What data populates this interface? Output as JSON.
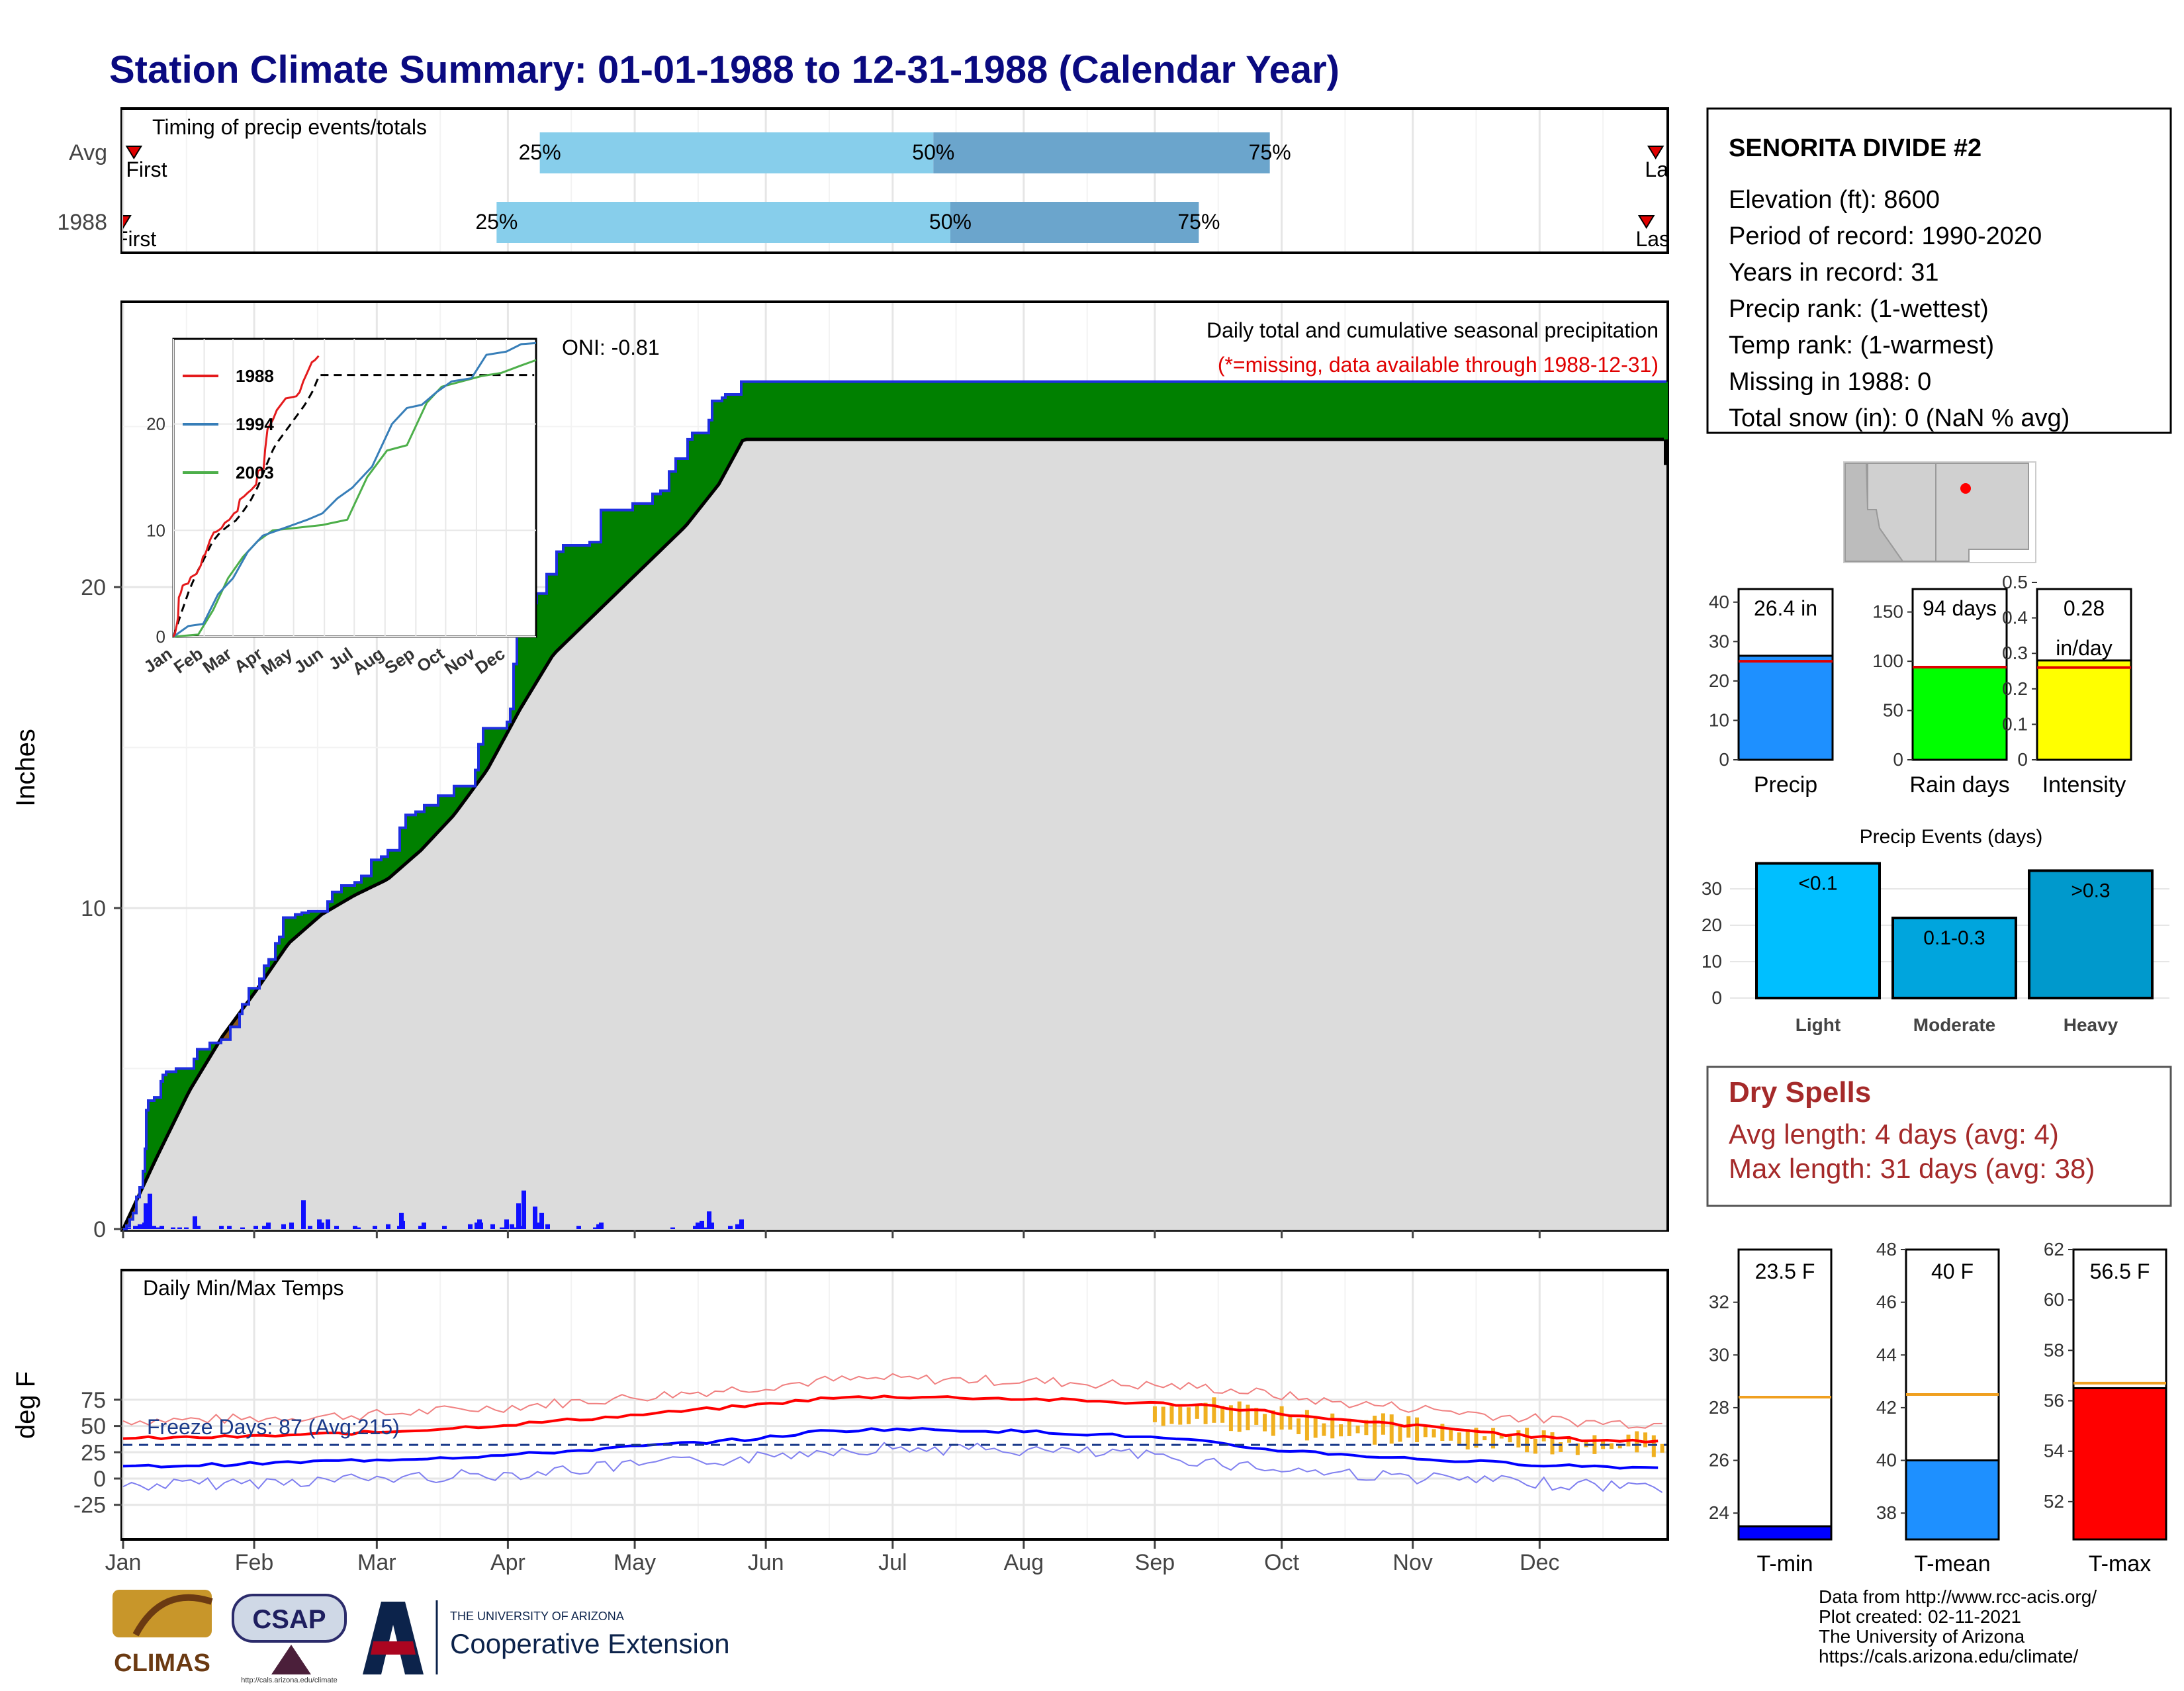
{
  "title": "Station Climate Summary: 01-01-1988 to 12-31-1988 (Calendar Year)",
  "months": [
    "Jan",
    "Feb",
    "Mar",
    "Apr",
    "May",
    "Jun",
    "Jul",
    "Aug",
    "Sep",
    "Oct",
    "Nov",
    "Dec"
  ],
  "timing": {
    "title": "Timing of precip events/totals",
    "rows": [
      {
        "label": "Avg",
        "p25": 0.27,
        "p50": 0.525,
        "p75": 0.743,
        "first": 0.007,
        "last": 0.993,
        "first_label": "First",
        "last_label": "Last"
      },
      {
        "label": "1988",
        "p25": 0.242,
        "p50": 0.536,
        "p75": 0.697,
        "first": 0.0,
        "last": 0.987,
        "first_label": "First",
        "last_label": "Last"
      }
    ],
    "pct_labels": [
      "25%",
      "50%",
      "75%"
    ]
  },
  "precip": {
    "ylabel": "Inches",
    "yticks": [
      0,
      10,
      20
    ],
    "header": "Daily total and cumulative seasonal precipitation",
    "missing_note": "(*=missing, data available through 1988-12-31)",
    "oni_label": "ONI: -0.81",
    "cum_1988": [
      [
        0,
        0
      ],
      [
        5,
        0.1
      ],
      [
        10,
        0.3
      ],
      [
        15,
        0.5
      ],
      [
        20,
        1.0
      ],
      [
        25,
        1.3
      ],
      [
        30,
        1.8
      ],
      [
        33,
        2.5
      ],
      [
        35,
        3.7
      ],
      [
        38,
        4.0
      ],
      [
        47,
        4.1
      ],
      [
        57,
        4.6
      ],
      [
        60,
        4.8
      ],
      [
        65,
        4.9
      ],
      [
        70,
        4.9
      ],
      [
        80,
        5.0
      ],
      [
        95,
        5.0
      ],
      [
        107,
        5.3
      ],
      [
        112,
        5.6
      ],
      [
        131,
        5.8
      ],
      [
        148,
        5.9
      ],
      [
        162,
        6.3
      ],
      [
        176,
        6.7
      ],
      [
        180,
        7.0
      ],
      [
        190,
        7.5
      ],
      [
        196,
        7.5
      ],
      [
        206,
        7.8
      ],
      [
        213,
        8.2
      ],
      [
        220,
        8.4
      ],
      [
        230,
        8.9
      ],
      [
        236,
        9.1
      ],
      [
        242,
        9.7
      ],
      [
        260,
        9.8
      ],
      [
        270,
        9.85
      ],
      [
        280,
        9.9
      ],
      [
        300,
        9.9
      ],
      [
        309,
        10.2
      ],
      [
        316,
        10.5
      ],
      [
        330,
        10.7
      ],
      [
        350,
        10.8
      ],
      [
        360,
        11.0
      ],
      [
        375,
        11.5
      ],
      [
        390,
        11.6
      ],
      [
        400,
        11.8
      ],
      [
        412,
        11.8
      ],
      [
        418,
        12.5
      ],
      [
        427,
        12.9
      ],
      [
        442,
        13.0
      ],
      [
        455,
        13.2
      ],
      [
        463,
        13.2
      ],
      [
        476,
        13.5
      ],
      [
        490,
        13.5
      ],
      [
        500,
        13.8
      ],
      [
        525,
        13.8
      ],
      [
        532,
        14.3
      ],
      [
        537,
        15.1
      ],
      [
        544,
        15.6
      ],
      [
        560,
        15.6
      ],
      [
        580,
        15.8
      ],
      [
        585,
        16.2
      ],
      [
        590,
        17.6
      ],
      [
        595,
        18.8
      ],
      [
        605,
        19.5
      ],
      [
        625,
        19.8
      ],
      [
        640,
        20.4
      ],
      [
        655,
        21.1
      ],
      [
        665,
        21.3
      ],
      [
        705,
        21.4
      ],
      [
        722,
        22.4
      ],
      [
        770,
        22.6
      ],
      [
        790,
        22.6
      ],
      [
        800,
        22.9
      ],
      [
        812,
        23.0
      ],
      [
        825,
        23.6
      ],
      [
        835,
        24.0
      ],
      [
        853,
        24.6
      ],
      [
        860,
        24.8
      ],
      [
        885,
        25.2
      ],
      [
        890,
        25.8
      ],
      [
        905,
        25.9
      ],
      [
        910,
        26.0
      ],
      [
        920,
        26.0
      ],
      [
        934,
        26.4
      ],
      [
        937,
        26.4
      ]
    ],
    "cum_avg": [
      [
        0,
        0
      ],
      [
        50,
        2.2
      ],
      [
        100,
        4.3
      ],
      [
        150,
        6.0
      ],
      [
        200,
        7.4
      ],
      [
        250,
        8.9
      ],
      [
        300,
        9.8
      ],
      [
        350,
        10.4
      ],
      [
        400,
        10.9
      ],
      [
        450,
        11.8
      ],
      [
        500,
        12.9
      ],
      [
        550,
        14.3
      ],
      [
        600,
        16.2
      ],
      [
        650,
        17.9
      ],
      [
        700,
        18.9
      ],
      [
        750,
        19.9
      ],
      [
        800,
        20.9
      ],
      [
        850,
        21.9
      ],
      [
        900,
        23.2
      ],
      [
        937,
        24.6
      ]
    ],
    "daily": [
      [
        8,
        0.05
      ],
      [
        18,
        0.1
      ],
      [
        25,
        0.15
      ],
      [
        32,
        0.2
      ],
      [
        34,
        0.8
      ],
      [
        37,
        0.2
      ],
      [
        40,
        1.1
      ],
      [
        46,
        0.1
      ],
      [
        52,
        0.05
      ],
      [
        58,
        0.1
      ],
      [
        75,
        0.05
      ],
      [
        85,
        0.05
      ],
      [
        95,
        0.05
      ],
      [
        108,
        0.4
      ],
      [
        113,
        0.1
      ],
      [
        148,
        0.1
      ],
      [
        160,
        0.1
      ],
      [
        180,
        0.05
      ],
      [
        200,
        0.1
      ],
      [
        213,
        0.1
      ],
      [
        219,
        0.2
      ],
      [
        242,
        0.15
      ],
      [
        254,
        0.2
      ],
      [
        272,
        0.9
      ],
      [
        282,
        0.1
      ],
      [
        296,
        0.3
      ],
      [
        300,
        0.2
      ],
      [
        309,
        0.3
      ],
      [
        322,
        0.1
      ],
      [
        350,
        0.1
      ],
      [
        355,
        0.05
      ],
      [
        380,
        0.1
      ],
      [
        400,
        0.15
      ],
      [
        417,
        0.1
      ],
      [
        420,
        0.5
      ],
      [
        422,
        0.25
      ],
      [
        449,
        0.1
      ],
      [
        454,
        0.2
      ],
      [
        485,
        0.1
      ],
      [
        524,
        0.15
      ],
      [
        534,
        0.2
      ],
      [
        538,
        0.3
      ],
      [
        540,
        0.2
      ],
      [
        558,
        0.15
      ],
      [
        572,
        0.05
      ],
      [
        579,
        0.3
      ],
      [
        587,
        0.15
      ],
      [
        592,
        0.05
      ],
      [
        597,
        0.8
      ],
      [
        600,
        0.1
      ],
      [
        605,
        1.2
      ],
      [
        622,
        0.7
      ],
      [
        627,
        0.2
      ],
      [
        632,
        0.5
      ],
      [
        641,
        0.15
      ],
      [
        688,
        0.1
      ],
      [
        713,
        0.05
      ],
      [
        718,
        0.15
      ],
      [
        722,
        0.2
      ],
      [
        830,
        0.05
      ],
      [
        864,
        0.1
      ],
      [
        868,
        0.2
      ],
      [
        874,
        0.25
      ],
      [
        879,
        0.05
      ],
      [
        885,
        0.55
      ],
      [
        889,
        0.2
      ],
      [
        917,
        0.1
      ],
      [
        928,
        0.15
      ],
      [
        934,
        0.3
      ]
    ],
    "inset": {
      "years": [
        {
          "name": "1988",
          "color": "#e41a1c"
        },
        {
          "name": "1994",
          "color": "#377eb8"
        },
        {
          "name": "2003",
          "color": "#4daf4a"
        }
      ],
      "yticks": [
        0,
        10,
        20
      ],
      "ymax": 28,
      "s1994": [
        [
          0,
          0
        ],
        [
          15,
          1.0
        ],
        [
          30,
          1.2
        ],
        [
          45,
          4.0
        ],
        [
          60,
          5.5
        ],
        [
          75,
          8.0
        ],
        [
          90,
          9.5
        ],
        [
          105,
          10.0
        ],
        [
          120,
          10.5
        ],
        [
          135,
          11.0
        ],
        [
          150,
          11.6
        ],
        [
          165,
          13.0
        ],
        [
          180,
          14.0
        ],
        [
          200,
          16.0
        ],
        [
          220,
          20.0
        ],
        [
          235,
          21.5
        ],
        [
          250,
          21.8
        ],
        [
          265,
          23.0
        ],
        [
          280,
          24.0
        ],
        [
          300,
          24.3
        ],
        [
          315,
          26.5
        ],
        [
          335,
          26.8
        ],
        [
          350,
          27.5
        ],
        [
          365,
          27.6
        ]
      ],
      "s2003": [
        [
          0,
          0
        ],
        [
          25,
          0.2
        ],
        [
          40,
          2.5
        ],
        [
          55,
          5.5
        ],
        [
          70,
          7.5
        ],
        [
          85,
          9.0
        ],
        [
          100,
          10.0
        ],
        [
          120,
          10.2
        ],
        [
          150,
          10.5
        ],
        [
          175,
          11.0
        ],
        [
          195,
          15.0
        ],
        [
          215,
          17.5
        ],
        [
          235,
          18.0
        ],
        [
          255,
          22.0
        ],
        [
          270,
          23.5
        ],
        [
          290,
          24.0
        ],
        [
          310,
          24.5
        ],
        [
          330,
          24.8
        ],
        [
          350,
          25.5
        ],
        [
          365,
          26.0
        ]
      ]
    }
  },
  "temps": {
    "ylabel": "deg F",
    "title": "Daily Min/Max Temps",
    "freeze_label": "Freeze Days: 87 (Avg:215)",
    "freeze_line": 32,
    "yticks": [
      -25,
      0,
      25,
      50,
      75
    ],
    "avg_max": [
      [
        0,
        38
      ],
      [
        30,
        40
      ],
      [
        60,
        44
      ],
      [
        90,
        51
      ],
      [
        120,
        60
      ],
      [
        150,
        70
      ],
      [
        165,
        76
      ],
      [
        180,
        78
      ],
      [
        200,
        77
      ],
      [
        220,
        75
      ],
      [
        240,
        72
      ],
      [
        255,
        70
      ],
      [
        270,
        64
      ],
      [
        285,
        56
      ],
      [
        300,
        52
      ],
      [
        315,
        47
      ],
      [
        330,
        41
      ],
      [
        345,
        37
      ],
      [
        365,
        35
      ]
    ],
    "avg_min": [
      [
        0,
        11
      ],
      [
        30,
        14
      ],
      [
        60,
        18
      ],
      [
        90,
        22
      ],
      [
        120,
        30
      ],
      [
        150,
        38
      ],
      [
        165,
        45
      ],
      [
        180,
        47
      ],
      [
        200,
        46
      ],
      [
        220,
        44
      ],
      [
        240,
        40
      ],
      [
        255,
        35
      ],
      [
        270,
        28
      ],
      [
        285,
        24
      ],
      [
        300,
        20
      ],
      [
        315,
        17
      ],
      [
        330,
        14
      ],
      [
        345,
        12
      ],
      [
        365,
        10
      ]
    ]
  },
  "station": {
    "name": "SENORITA DIVIDE #2",
    "lines": [
      "Elevation (ft): 8600",
      "Period of record: 1990-2020",
      "Years in record: 31",
      "Precip rank:  (1-wettest)",
      "Temp rank:  (1-warmest)",
      "Missing in 1988: 0",
      "Total snow (in): 0 (NaN % avg)"
    ]
  },
  "minibars": [
    {
      "label": "Precip",
      "value": 26.4,
      "value_label": "26.4 in",
      "avg": 25.0,
      "ymax": 45,
      "yticks": [
        0,
        10,
        20,
        30,
        40
      ],
      "color": "#1e90ff"
    },
    {
      "label": "Rain days",
      "value": 94,
      "value_label": "94 days",
      "avg": 94,
      "ymax": 180,
      "yticks": [
        0,
        50,
        100,
        150
      ],
      "color": "#00ff00"
    },
    {
      "label": "Intensity",
      "value": 0.28,
      "value_label": "0.28",
      "value_label2": "in/day",
      "avg": 0.26,
      "ymax": 0.5,
      "yticks": [
        0.0,
        0.1,
        0.2,
        0.3,
        0.4,
        0.5
      ],
      "color": "#ffff00"
    }
  ],
  "events": {
    "title": "Precip Events (days)",
    "yticks": [
      0,
      10,
      20,
      30
    ],
    "bars": [
      {
        "cat": "Light",
        "label": "<0.1",
        "value": 37,
        "color": "#00bfff"
      },
      {
        "cat": "Moderate",
        "label": "0.1-0.3",
        "value": 22,
        "color": "#00a5dd"
      },
      {
        "cat": "Heavy",
        "label": ">0.3",
        "value": 35,
        "color": "#0099cc"
      }
    ]
  },
  "dry_spells": {
    "title": "Dry Spells",
    "line1": "Avg length: 4 days (avg: 4)",
    "line2": "Max length: 31 days (avg: 38)"
  },
  "tbars": [
    {
      "label": "T-min",
      "value": 23.5,
      "value_label": "23.5 F",
      "avg": 28.4,
      "ymin": 23,
      "ymax": 34,
      "yticks": [
        24,
        26,
        28,
        30,
        32
      ],
      "color": "#0000ff"
    },
    {
      "label": "T-mean",
      "value": 40.0,
      "value_label": "40 F",
      "avg": 42.5,
      "ymin": 37,
      "ymax": 48,
      "yticks": [
        38,
        40,
        42,
        44,
        46,
        48
      ],
      "color": "#1e90ff"
    },
    {
      "label": "T-max",
      "value": 56.5,
      "value_label": "56.5 F",
      "avg": 56.7,
      "ymin": 50.5,
      "ymax": 62,
      "yticks": [
        52,
        54,
        56,
        58,
        60,
        62
      ],
      "color": "#ff0000"
    }
  ],
  "footer": {
    "lines": [
      "Data from http://www.rcc-acis.org/",
      "Plot created: 02-11-2021",
      "The University of Arizona",
      "https://cals.arizona.edu/climate/"
    ],
    "logo1": "CLIMAS",
    "logo2": "CSAP",
    "logo2_sub": "http://cals.arizona.edu/climate",
    "logo3_a": "THE UNIVERSITY OF ARIZONA",
    "logo3_b": "Cooperative Extension"
  }
}
